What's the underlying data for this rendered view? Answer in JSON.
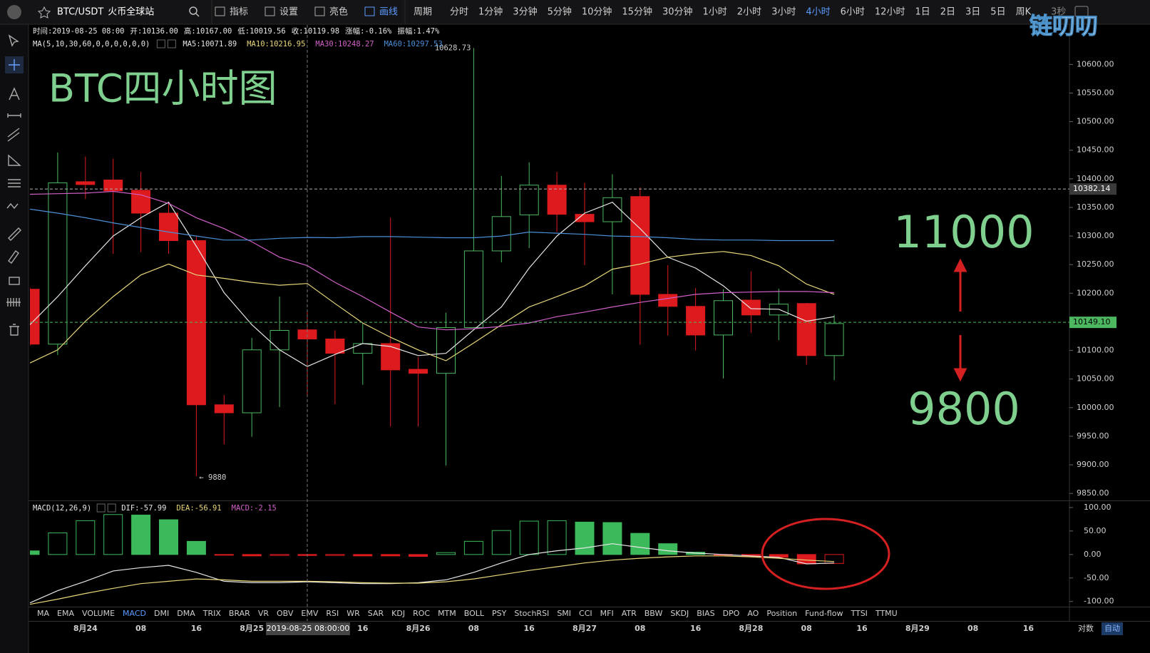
{
  "toolbar": {
    "symbol": "BTC/USDT",
    "exchange": "火币全球站",
    "buttons": [
      "指标",
      "设置",
      "亮色",
      "画线"
    ],
    "period_label": "周期",
    "periods": [
      {
        "label": "分时"
      },
      {
        "label": "1分钟"
      },
      {
        "label": "3分钟"
      },
      {
        "label": "5分钟"
      },
      {
        "label": "10分钟"
      },
      {
        "label": "15分钟"
      },
      {
        "label": "30分钟"
      },
      {
        "label": "1小时"
      },
      {
        "label": "2小时"
      },
      {
        "label": "3小时"
      },
      {
        "label": "4小时",
        "selected": true
      },
      {
        "label": "6小时"
      },
      {
        "label": "12小时"
      },
      {
        "label": "1日"
      },
      {
        "label": "2日"
      },
      {
        "label": "3日"
      },
      {
        "label": "5日"
      },
      {
        "label": "周K"
      }
    ],
    "refresh": "3秒",
    "watermark": "链叨叨"
  },
  "chart_data": [
    {
      "type": "candlestick",
      "title": "BTC四小时图",
      "info": [
        "时间:2019-08-25 08:00",
        "开:10136.00",
        "高:10167.00",
        "低:10019.56",
        "收:10119.98",
        "涨幅:-0.16%",
        "振幅:1.47%"
      ],
      "indicator_label": "MA(5,10,30,60,0,0,0,0,0,0)",
      "categories": [
        null,
        null,
        "8月24",
        null,
        "08",
        null,
        "16",
        null,
        "8月25",
        null,
        null,
        null,
        "16",
        null,
        "8月26",
        null,
        "08",
        null,
        "16",
        null,
        "8月27",
        null,
        "08",
        null,
        "16",
        null,
        "8月28",
        null,
        "08",
        null,
        "16",
        null,
        "8月29",
        null,
        "08",
        null,
        "16"
      ],
      "crosshair_label": "2019-08-25 08:00:00",
      "open": [
        10207,
        10111,
        10395,
        10398,
        10380,
        10340,
        10292,
        10005,
        9991,
        10101,
        10136,
        10120,
        10095,
        10112,
        10067,
        10060,
        10140,
        10274,
        10337,
        10389,
        10338,
        10325,
        10369,
        10198,
        10177,
        10127,
        10188,
        10162,
        10182,
        10091,
        null,
        null,
        null,
        null,
        null,
        null,
        null
      ],
      "high": [
        10210,
        10446,
        10439,
        10435,
        10412,
        10359,
        10300,
        10022,
        10122,
        10194,
        10167,
        10135,
        10147,
        10332,
        10088,
        10166,
        10628.73,
        10405,
        10429,
        10412,
        10393,
        10408,
        10385,
        10249,
        10209,
        10207,
        10238,
        10208,
        10183,
        10162,
        null,
        null,
        null,
        null,
        null,
        null,
        null
      ],
      "low": [
        10108,
        10092,
        10365,
        10269,
        10272,
        10269,
        9880,
        9936,
        9949,
        10001,
        10019.56,
        10006,
        10040,
        9967,
        9967,
        9899,
        10140,
        10254,
        10279,
        10307,
        10249,
        10198,
        10110,
        10126,
        10100,
        10051,
        10131,
        10118,
        10075,
        10048,
        null,
        null,
        null,
        null,
        null,
        null,
        null
      ],
      "close": [
        10111,
        10393,
        10390,
        10379,
        10340,
        10292,
        10005,
        9991,
        10101,
        10135,
        10119.98,
        10095,
        10112,
        10066,
        10060,
        10140,
        10274,
        10334,
        10389,
        10338,
        10325,
        10367,
        10198,
        10177,
        10127,
        10187,
        10162,
        10181,
        10091,
        10147,
        null,
        null,
        null,
        null,
        null,
        null,
        null
      ],
      "up_color": "#4cb860",
      "down_color": "#dd1a1d",
      "series": [
        {
          "name": "MA5:10071.89",
          "color": "#e6e6e6",
          "values": [
            10145,
            10194,
            10248,
            10300,
            10332,
            10359,
            10282,
            10201,
            10145,
            10101,
            10071.89,
            10093,
            10112,
            10107,
            10091,
            10095,
            10136,
            10176,
            10244,
            10300,
            10340,
            10359,
            10313,
            10263,
            10244,
            10213,
            10173,
            10172,
            10151,
            10159,
            null,
            null,
            null,
            null,
            null,
            null,
            null
          ]
        },
        {
          "name": "MA10:10216.95",
          "color": "#e8d77a",
          "values": [
            10078,
            10101,
            10151,
            10194,
            10232,
            10251,
            10232,
            10226,
            10219,
            10214,
            10216.95,
            10182,
            10148,
            10123,
            10101,
            10082,
            10113,
            10145,
            10176,
            10194,
            10213,
            10242,
            10251,
            10263,
            10269,
            10273,
            10266,
            10248,
            10216,
            10198,
            null,
            null,
            null,
            null,
            null,
            null,
            null
          ]
        },
        {
          "name": "MA30:10248.27",
          "color": "#d060c8",
          "values": [
            10373,
            10374,
            10375,
            10378,
            10372,
            10357,
            10332,
            10313,
            10290,
            10263,
            10248.27,
            10219,
            10194,
            10167,
            10141,
            10136,
            10138,
            10142,
            10148,
            10159,
            10167,
            10176,
            10184,
            10191,
            10198,
            10201,
            10202,
            10203,
            10203,
            10201,
            null,
            null,
            null,
            null,
            null,
            null,
            null
          ]
        },
        {
          "name": "MA60:10297.53",
          "color": "#4a8fd6",
          "values": [
            10347,
            10340,
            10332,
            10323,
            10315,
            10307,
            10300,
            10293,
            10293,
            10296,
            10297.53,
            10297,
            10299,
            10299,
            10298,
            10297,
            10297,
            10300,
            10307,
            10305,
            10303,
            10300,
            10299,
            10297,
            10294,
            10293,
            10293,
            10292,
            10292,
            10292,
            null,
            null,
            null,
            null,
            null,
            null,
            null
          ]
        }
      ],
      "price_lines": [
        {
          "value": 10382.14,
          "label": "10382.14",
          "line_color": "#b0b0b0",
          "box_color": "#3a3a3a",
          "text_color": "#ffffff"
        },
        {
          "value": 10149.1,
          "label": "10149.10",
          "line_color": "#4cb860",
          "box_color": "#4cb860",
          "text_color": "#000000"
        }
      ],
      "high_label": "10628.73",
      "low_label": "← 9880",
      "annotations": [
        "11000",
        "9800"
      ],
      "ylim": [
        9839,
        10669
      ],
      "yticks": [
        {
          "value": 9850,
          "label": "9850.00"
        },
        {
          "value": 9900,
          "label": "9900.00"
        },
        {
          "value": 9950,
          "label": "9950.00"
        },
        {
          "value": 10000,
          "label": "10000.00"
        },
        {
          "value": 10050,
          "label": "10050.00"
        },
        {
          "value": 10100,
          "label": "10100.00"
        },
        {
          "value": 10150,
          "label": "10150.00"
        },
        {
          "value": 10200,
          "label": "10200.00"
        },
        {
          "value": 10250,
          "label": "10250.00"
        },
        {
          "value": 10300,
          "label": "10300.00"
        },
        {
          "value": 10350,
          "label": "10350.00"
        },
        {
          "value": 10400,
          "label": "10400.00"
        },
        {
          "value": 10450,
          "label": "10450.00"
        },
        {
          "value": 10500,
          "label": "10500.00"
        },
        {
          "value": 10550,
          "label": "10550.00"
        },
        {
          "value": 10600,
          "label": "10600.00"
        }
      ]
    },
    {
      "type": "macd",
      "indicator_label": "MACD(12,26,9)",
      "series": [
        {
          "name": "DIF:-57.99",
          "color": "#e6e6e6",
          "values": [
            -103,
            -77,
            -57,
            -35,
            -28,
            -23,
            -38,
            -57,
            -60,
            -60,
            -57.99,
            -60,
            -62,
            -62,
            -60,
            -54,
            -38,
            -18,
            0,
            8,
            14,
            23,
            15,
            8,
            3,
            0,
            -3,
            -6,
            -20,
            -18,
            null,
            null,
            null,
            null,
            null,
            null,
            null
          ]
        },
        {
          "name": "DEA:-56.91",
          "color": "#e8d77a",
          "values": [
            -106,
            -95,
            -83,
            -72,
            -62,
            -57,
            -52,
            -54,
            -57,
            -57,
            -56.91,
            -58,
            -60,
            -61,
            -61,
            -58,
            -52,
            -43,
            -34,
            -26,
            -18,
            -12,
            -8,
            -5,
            -3,
            -3,
            -5,
            -8,
            -12,
            -15,
            null,
            null,
            null,
            null,
            null,
            null,
            null
          ]
        }
      ],
      "histogram": {
        "name": "MACD:-2.15",
        "label_color": "#d060c8",
        "up_color": "#3cb95a",
        "down_color": "#dd1a1d",
        "values": [
          7.7,
          46,
          72,
          85,
          84,
          74,
          28,
          -1,
          -3,
          -2,
          -2.15,
          -2,
          -3,
          -3,
          -4,
          4,
          28,
          51,
          71,
          72,
          69,
          68,
          45,
          23,
          5,
          -1,
          -4,
          -6,
          -20,
          -19,
          null,
          null,
          null,
          null,
          null,
          null,
          null
        ]
      },
      "ylim": [
        -111,
        112
      ],
      "yticks": [
        {
          "value": -100,
          "label": "-100.00"
        },
        {
          "value": -50,
          "label": "-50.00"
        },
        {
          "value": 0,
          "label": "0.00"
        },
        {
          "value": 50,
          "label": "50.00"
        },
        {
          "value": 100,
          "label": "100.00"
        }
      ]
    }
  ],
  "indicator_tabs": [
    {
      "label": "MA"
    },
    {
      "label": "EMA"
    },
    {
      "label": "VOLUME"
    },
    {
      "label": "MACD",
      "selected": true
    },
    {
      "label": "DMI"
    },
    {
      "label": "DMA"
    },
    {
      "label": "TRIX"
    },
    {
      "label": "BRAR"
    },
    {
      "label": "VR"
    },
    {
      "label": "OBV"
    },
    {
      "label": "EMV"
    },
    {
      "label": "RSI"
    },
    {
      "label": "WR"
    },
    {
      "label": "SAR"
    },
    {
      "label": "KDJ"
    },
    {
      "label": "ROC"
    },
    {
      "label": "MTM"
    },
    {
      "label": "BOLL"
    },
    {
      "label": "PSY"
    },
    {
      "label": "StochRSI"
    },
    {
      "label": "SMI"
    },
    {
      "label": "CCI"
    },
    {
      "label": "MFI"
    },
    {
      "label": "ATR"
    },
    {
      "label": "BBW"
    },
    {
      "label": "SKDJ"
    },
    {
      "label": "BIAS"
    },
    {
      "label": "DPO"
    },
    {
      "label": "AO"
    },
    {
      "label": "Position"
    },
    {
      "label": "Fund-flow"
    },
    {
      "label": "TTSI"
    },
    {
      "label": "TTMU"
    }
  ],
  "scale_options": [
    "对数",
    "自动"
  ]
}
